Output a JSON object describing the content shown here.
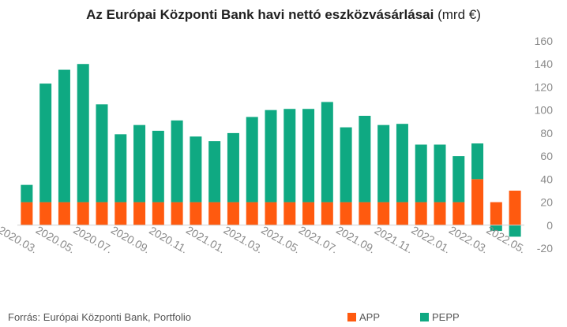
{
  "title": {
    "bold": "Az Európai Központi Bank havi nettó eszközvásárlásai",
    "unit": "(mrd €)"
  },
  "source": "Forrás: Európai Központi Bank, Portfolio",
  "colors": {
    "app": "#ff5a0f",
    "pepp": "#0fa982",
    "axis_text": "#8a8a8a",
    "zero_line": "#d0d0d0"
  },
  "chart_data": {
    "type": "bar",
    "stacked": true,
    "categories": [
      "2020.03.",
      "2020.04.",
      "2020.05.",
      "2020.06.",
      "2020.07.",
      "2020.08.",
      "2020.09.",
      "2020.10.",
      "2020.11.",
      "2020.12.",
      "2021.01.",
      "2021.02.",
      "2021.03.",
      "2021.04.",
      "2021.05.",
      "2021.06.",
      "2021.07.",
      "2021.08.",
      "2021.09.",
      "2021.10.",
      "2021.11.",
      "2021.12.",
      "2022.01.",
      "2022.02.",
      "2022.03.",
      "2022.04.",
      "2022.05."
    ],
    "x_tick_labels": [
      "2020.03.",
      "2020.05.",
      "2020.07.",
      "2020.09.",
      "2020.11.",
      "2021.01.",
      "2021.03.",
      "2021.05.",
      "2021.07.",
      "2021.09.",
      "2021.11.",
      "2022.01.",
      "2022.03.",
      "2022.05."
    ],
    "series": [
      {
        "name": "APP",
        "values": [
          20,
          20,
          20,
          20,
          20,
          20,
          20,
          20,
          20,
          20,
          20,
          20,
          20,
          20,
          20,
          20,
          20,
          20,
          20,
          20,
          20,
          20,
          20,
          20,
          40,
          20,
          30
        ]
      },
      {
        "name": "PEPP",
        "values": [
          15,
          103,
          115,
          120,
          85,
          59,
          67,
          62,
          71,
          57,
          53,
          60,
          74,
          80,
          81,
          81,
          87,
          65,
          75,
          67,
          68,
          50,
          50,
          40,
          31,
          -5,
          -10
        ]
      }
    ],
    "ylim": [
      -20,
      160
    ],
    "yticks": [
      -20,
      0,
      20,
      40,
      60,
      80,
      100,
      120,
      140,
      160
    ],
    "y_axis_position": "right",
    "grid": false,
    "legend_position": "bottom"
  }
}
